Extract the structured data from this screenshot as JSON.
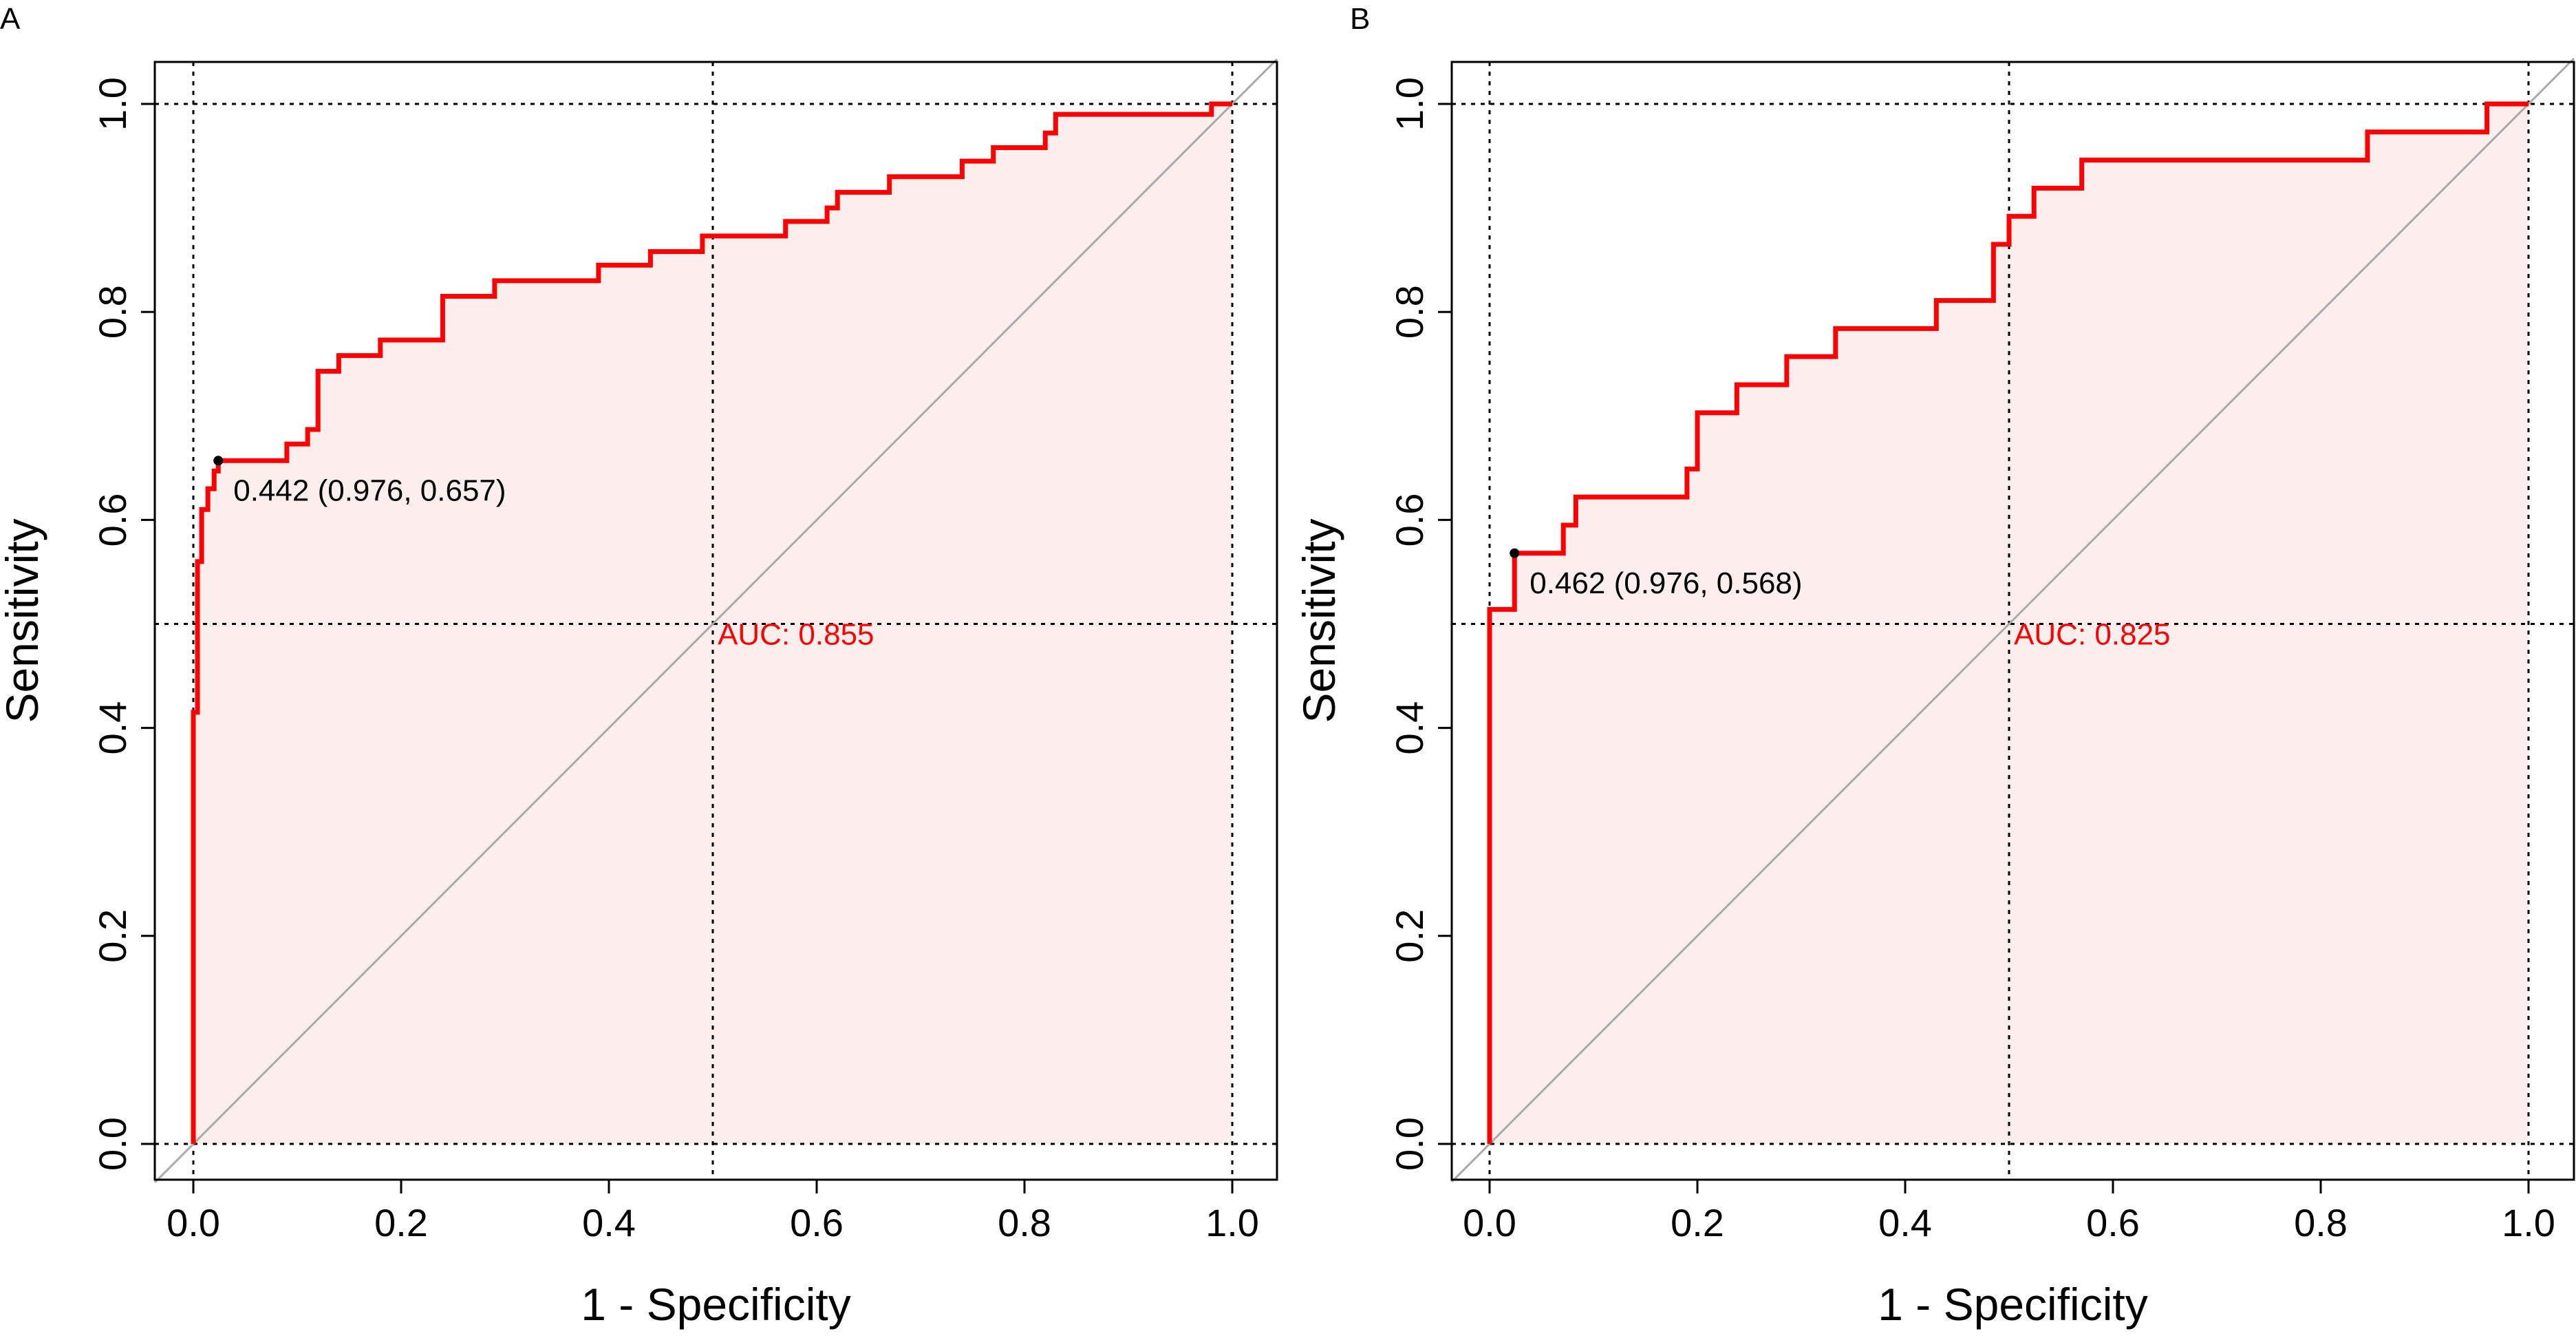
{
  "figure": {
    "colors": {
      "roc_line": "#ff0000",
      "auc_fill": "#fdeeee",
      "auc_text": "#ff0000",
      "grid": "#000000",
      "diagonal": "#aaaaaa",
      "text": "#000000"
    }
  },
  "chart_data": [
    {
      "panel_label": "A",
      "type": "line",
      "title": "",
      "xlabel": "1 - Specificity",
      "ylabel": "Sensitivity",
      "xlim": [
        0.0,
        1.0
      ],
      "ylim": [
        0.0,
        1.0
      ],
      "xticks": [
        "0.0",
        "0.2",
        "0.4",
        "0.6",
        "0.8",
        "1.0"
      ],
      "yticks": [
        "0.0",
        "0.2",
        "0.4",
        "0.6",
        "0.8",
        "1.0"
      ],
      "grid": true,
      "auc_label": "AUC: 0.855",
      "auc_label_at": [
        0.58,
        0.48
      ],
      "threshold_label": "0.442 (0.976, 0.657)",
      "threshold_point": [
        0.024,
        0.657
      ],
      "series": [
        {
          "name": "ROC",
          "x": [
            0.0,
            0.0,
            0.004,
            0.004,
            0.008,
            0.008,
            0.014,
            0.014,
            0.02,
            0.02,
            0.024,
            0.024,
            0.09,
            0.09,
            0.11,
            0.11,
            0.12,
            0.12,
            0.14,
            0.14,
            0.18,
            0.18,
            0.24,
            0.24,
            0.29,
            0.29,
            0.39,
            0.39,
            0.44,
            0.44,
            0.49,
            0.49,
            0.57,
            0.57,
            0.61,
            0.61,
            0.62,
            0.62,
            0.67,
            0.67,
            0.74,
            0.74,
            0.77,
            0.77,
            0.82,
            0.82,
            0.83,
            0.83,
            0.98,
            0.98,
            1.0
          ],
          "y": [
            0.0,
            0.415,
            0.415,
            0.56,
            0.56,
            0.61,
            0.61,
            0.63,
            0.63,
            0.647,
            0.647,
            0.657,
            0.657,
            0.673,
            0.673,
            0.687,
            0.687,
            0.743,
            0.743,
            0.758,
            0.758,
            0.773,
            0.773,
            0.815,
            0.815,
            0.83,
            0.83,
            0.845,
            0.845,
            0.858,
            0.858,
            0.873,
            0.873,
            0.887,
            0.887,
            0.9,
            0.9,
            0.915,
            0.915,
            0.93,
            0.93,
            0.945,
            0.945,
            0.958,
            0.958,
            0.972,
            0.972,
            0.99,
            0.99,
            1.0,
            1.0
          ]
        }
      ]
    },
    {
      "panel_label": "B",
      "type": "line",
      "title": "",
      "xlabel": "1 - Specificity",
      "ylabel": "Sensitivity",
      "xlim": [
        0.0,
        1.0
      ],
      "ylim": [
        0.0,
        1.0
      ],
      "xticks": [
        "0.0",
        "0.2",
        "0.4",
        "0.6",
        "0.8",
        "1.0"
      ],
      "yticks": [
        "0.0",
        "0.2",
        "0.4",
        "0.6",
        "0.8",
        "1.0"
      ],
      "grid": true,
      "auc_label": "AUC: 0.825",
      "auc_label_at": [
        0.58,
        0.48
      ],
      "threshold_label": "0.462 (0.976, 0.568)",
      "threshold_point": [
        0.024,
        0.568
      ],
      "series": [
        {
          "name": "ROC",
          "x": [
            0.0,
            0.0,
            0.024,
            0.024,
            0.071,
            0.071,
            0.083,
            0.083,
            0.19,
            0.19,
            0.2,
            0.2,
            0.238,
            0.238,
            0.286,
            0.286,
            0.333,
            0.333,
            0.43,
            0.43,
            0.485,
            0.485,
            0.5,
            0.5,
            0.524,
            0.524,
            0.57,
            0.57,
            0.845,
            0.845,
            0.96,
            0.96,
            1.0
          ],
          "y": [
            0.0,
            0.514,
            0.514,
            0.568,
            0.568,
            0.595,
            0.595,
            0.622,
            0.622,
            0.649,
            0.649,
            0.703,
            0.703,
            0.73,
            0.73,
            0.757,
            0.757,
            0.784,
            0.784,
            0.811,
            0.811,
            0.865,
            0.865,
            0.892,
            0.892,
            0.919,
            0.919,
            0.946,
            0.946,
            0.973,
            0.973,
            1.0,
            1.0
          ]
        }
      ]
    }
  ]
}
